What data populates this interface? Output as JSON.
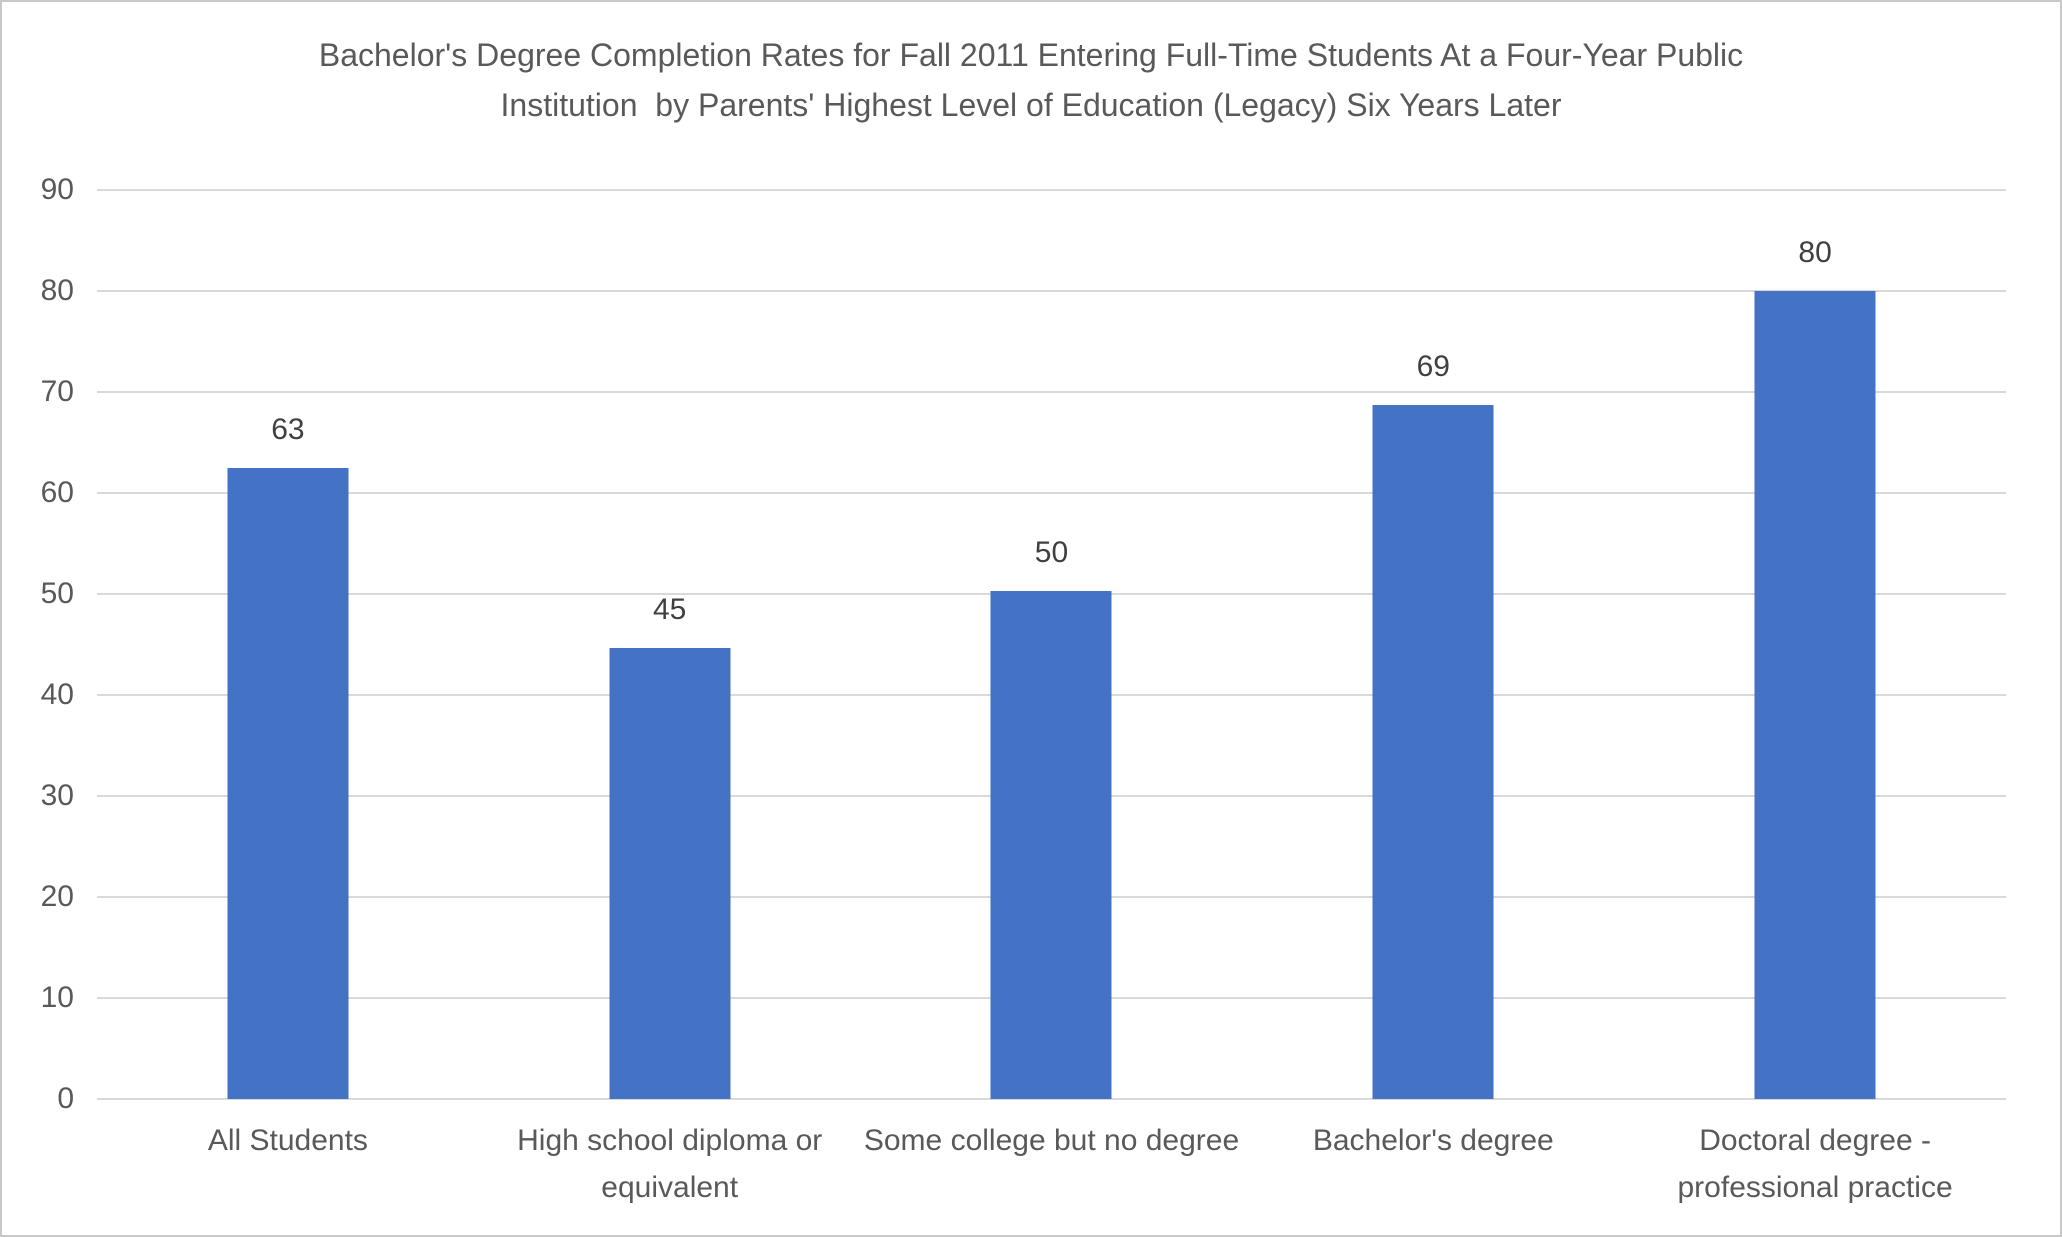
{
  "chart_data": {
    "type": "bar",
    "title": "Bachelor's Degree Completion Rates for Fall 2011 Entering Full-Time Students At a Four-Year Public\nInstitution  by Parents' Highest Level of Education (Legacy) Six Years Later",
    "categories": [
      "All Students",
      "High school diploma or equivalent",
      "Some college but no degree",
      "Bachelor's degree",
      "Doctoral degree - professional practice"
    ],
    "values": [
      63,
      45,
      50,
      69,
      80
    ],
    "data_labels": [
      "63",
      "45",
      "50",
      "69",
      "80"
    ],
    "values_plotted": [
      62.5,
      44.7,
      50.3,
      68.7,
      80
    ],
    "ylim": [
      0,
      90
    ],
    "yticks": [
      0,
      10,
      20,
      30,
      40,
      50,
      60,
      70,
      80,
      90
    ],
    "xlabel": "",
    "ylabel": "",
    "grid": true,
    "legend": false,
    "colors": {
      "bar": "#4472c4",
      "gridline": "#d9d9d9",
      "axis_text": "#595959",
      "data_label": "#404040",
      "title_text": "#595959",
      "canvas_border": "#c9c9c9",
      "background": "#ffffff"
    }
  }
}
